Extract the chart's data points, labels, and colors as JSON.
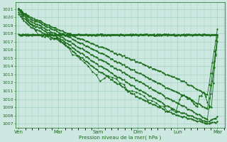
{
  "bg_color": "#cce8e0",
  "grid_color": "#99ccbb",
  "line_color": "#1a6b1a",
  "ylabel": "Pression niveau de la mer( hPa )",
  "ylim": [
    1006.5,
    1021.8
  ],
  "yticks": [
    1007,
    1008,
    1009,
    1010,
    1011,
    1012,
    1013,
    1014,
    1015,
    1016,
    1017,
    1018,
    1019,
    1020,
    1021
  ],
  "xtick_labels": [
    "Ven",
    "Mar",
    "Sam",
    "Dim",
    "Lun",
    "Mar"
  ],
  "xtick_positions": [
    0,
    1,
    2,
    3,
    4,
    5
  ],
  "figsize": [
    3.2,
    2.0
  ],
  "dpi": 100
}
